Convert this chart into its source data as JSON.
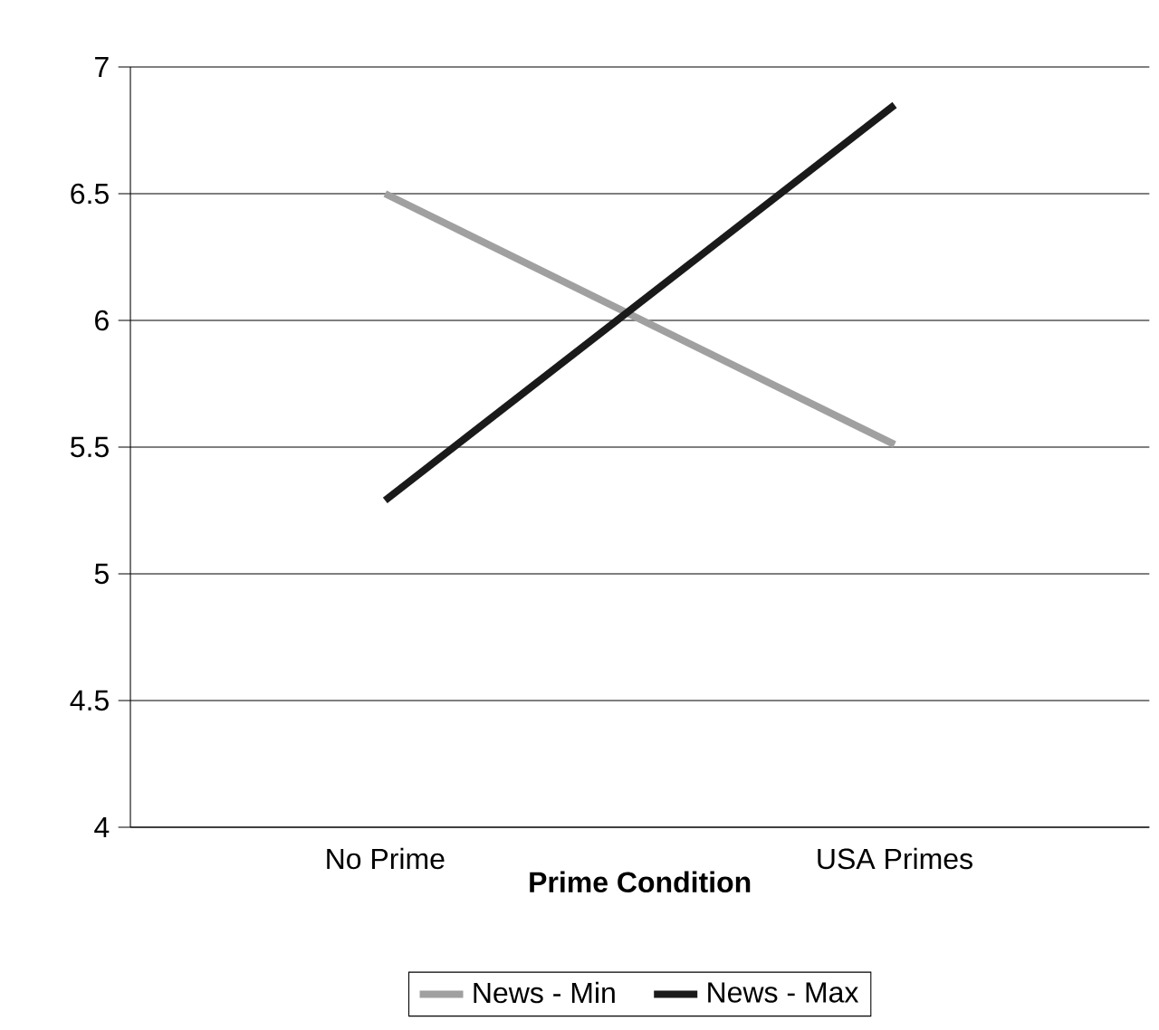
{
  "chart_data": {
    "type": "line",
    "xlabel": "Prime Condition",
    "categories": [
      "No Prime",
      "USA Primes"
    ],
    "series": [
      {
        "name": "News - Min",
        "color": "#a0a0a0",
        "values": [
          6.5,
          5.51
        ]
      },
      {
        "name": "News - Max",
        "color": "#1a1a1a",
        "values": [
          5.29,
          6.85
        ]
      }
    ],
    "ylim": [
      4,
      7
    ],
    "yticks": [
      4,
      4.5,
      5,
      5.5,
      6,
      6.5,
      7
    ],
    "grid": "y",
    "legend": "bottom"
  }
}
